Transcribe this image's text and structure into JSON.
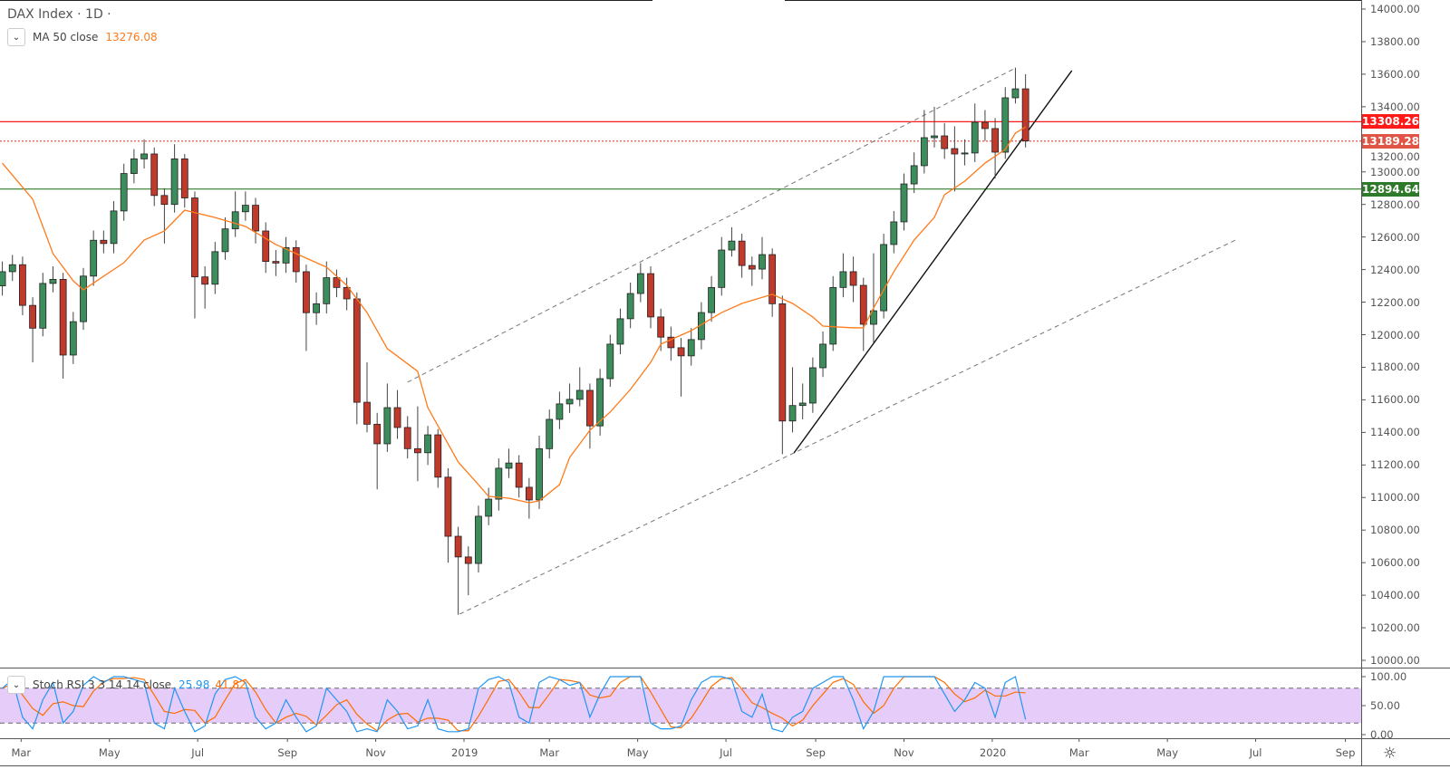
{
  "header": {
    "symbol_title": "DAX Index · 1D ·"
  },
  "ma_legend": {
    "label": "MA 50 close",
    "value": "13276.08",
    "color": "#ff7a1a"
  },
  "stoch_legend": {
    "label": "Stoch RSI 3 3 14 14 close",
    "k_value": "25.98",
    "d_value": "41.82",
    "k_color": "#2196f3",
    "d_color": "#ff6d00"
  },
  "colors": {
    "up": "#3d8c5c",
    "down": "#c0392b",
    "band_fill": "#e6ccf8"
  },
  "chart_data": [
    {
      "type": "candlestick",
      "title": "DAX Index · 1D",
      "y_axis": {
        "range": [
          10000,
          14000
        ],
        "ticks": [
          "14000.00",
          "13800.00",
          "13600.00",
          "13400.00",
          "13200.00",
          "13000.00",
          "12800.00",
          "12600.00",
          "12400.00",
          "12200.00",
          "12000.00",
          "11800.00",
          "11600.00",
          "11400.00",
          "11200.00",
          "11000.00",
          "10800.00",
          "10600.00",
          "10400.00",
          "10200.00",
          "10000.00"
        ]
      },
      "x_axis": {
        "ticks": [
          {
            "label": "Mar",
            "date": "2018-03-01"
          },
          {
            "label": "May",
            "date": "2018-05-01"
          },
          {
            "label": "Jul",
            "date": "2018-07-01"
          },
          {
            "label": "Sep",
            "date": "2018-09-01"
          },
          {
            "label": "Nov",
            "date": "2018-11-01"
          },
          {
            "label": "2019",
            "date": "2019-01-01"
          },
          {
            "label": "Mar",
            "date": "2019-03-01"
          },
          {
            "label": "May",
            "date": "2019-05-01"
          },
          {
            "label": "Jul",
            "date": "2019-07-01"
          },
          {
            "label": "Sep",
            "date": "2019-09-01"
          },
          {
            "label": "Nov",
            "date": "2019-11-01"
          },
          {
            "label": "2020",
            "date": "2020-01-01"
          },
          {
            "label": "Mar",
            "date": "2020-03-01"
          },
          {
            "label": "May",
            "date": "2020-05-01"
          },
          {
            "label": "Jul",
            "date": "2020-07-01"
          },
          {
            "label": "Sep",
            "date": "2020-09-01"
          }
        ]
      },
      "candles": [
        [
          "2018-02-16",
          12300,
          12450,
          12240,
          12387
        ],
        [
          "2018-02-23",
          12387,
          12490,
          12330,
          12430
        ],
        [
          "2018-03-02",
          12430,
          12480,
          12120,
          12180
        ],
        [
          "2018-03-09",
          12180,
          12230,
          11830,
          12040
        ],
        [
          "2018-03-16",
          12040,
          12380,
          11990,
          12315
        ],
        [
          "2018-03-23",
          12315,
          12420,
          12260,
          12340
        ],
        [
          "2018-03-30",
          12340,
          12380,
          11730,
          11875
        ],
        [
          "2018-04-06",
          11875,
          12140,
          11820,
          12080
        ],
        [
          "2018-04-13",
          12080,
          12410,
          12030,
          12360
        ],
        [
          "2018-04-20",
          12360,
          12640,
          12300,
          12580
        ],
        [
          "2018-04-27",
          12580,
          12640,
          12500,
          12560
        ],
        [
          "2018-05-04",
          12560,
          12820,
          12500,
          12760
        ],
        [
          "2018-05-11",
          12760,
          13050,
          12700,
          12990
        ],
        [
          "2018-05-18",
          12990,
          13140,
          12930,
          13080
        ],
        [
          "2018-05-25",
          13080,
          13200,
          13020,
          13110
        ],
        [
          "2018-06-01",
          13110,
          13150,
          12790,
          12855
        ],
        [
          "2018-06-08",
          12855,
          12900,
          12560,
          12800
        ],
        [
          "2018-06-15",
          12800,
          13170,
          12750,
          13080
        ],
        [
          "2018-06-22",
          13080,
          13110,
          12780,
          12840
        ],
        [
          "2018-06-29",
          12840,
          12880,
          12100,
          12355
        ],
        [
          "2018-07-06",
          12355,
          12420,
          12160,
          12310
        ],
        [
          "2018-07-13",
          12310,
          12570,
          12250,
          12510
        ],
        [
          "2018-07-20",
          12510,
          12720,
          12460,
          12650
        ],
        [
          "2018-07-27",
          12650,
          12880,
          12600,
          12755
        ],
        [
          "2018-08-03",
          12755,
          12880,
          12700,
          12795
        ],
        [
          "2018-08-10",
          12795,
          12840,
          12560,
          12637
        ],
        [
          "2018-08-17",
          12637,
          12690,
          12380,
          12450
        ],
        [
          "2018-08-24",
          12450,
          12520,
          12360,
          12440
        ],
        [
          "2018-08-31",
          12440,
          12600,
          12380,
          12535
        ],
        [
          "2018-09-07",
          12535,
          12580,
          12320,
          12387
        ],
        [
          "2018-09-14",
          12387,
          12430,
          11900,
          12135
        ],
        [
          "2018-09-21",
          12135,
          12260,
          12060,
          12190
        ],
        [
          "2018-09-28",
          12190,
          12450,
          12130,
          12350
        ],
        [
          "2018-10-05",
          12350,
          12400,
          12230,
          12290
        ],
        [
          "2018-10-12",
          12290,
          12350,
          12150,
          12220
        ],
        [
          "2018-10-19",
          12220,
          12260,
          11450,
          11585
        ],
        [
          "2018-10-26",
          11585,
          11830,
          11400,
          11450
        ],
        [
          "2018-11-02",
          11450,
          11520,
          11050,
          11330
        ],
        [
          "2018-11-09",
          11330,
          11700,
          11280,
          11552
        ],
        [
          "2018-11-16",
          11552,
          11660,
          11360,
          11430
        ],
        [
          "2018-11-23",
          11430,
          11500,
          11240,
          11300
        ],
        [
          "2018-11-30",
          11300,
          11560,
          11100,
          11275
        ],
        [
          "2018-12-07",
          11275,
          11440,
          11200,
          11385
        ],
        [
          "2018-12-14",
          11385,
          11420,
          11060,
          11125
        ],
        [
          "2018-12-21",
          11125,
          11180,
          10600,
          10762
        ],
        [
          "2018-12-28",
          10762,
          10820,
          10280,
          10635
        ],
        [
          "2019-01-04",
          10635,
          10700,
          10400,
          10595
        ],
        [
          "2019-01-11",
          10595,
          10950,
          10540,
          10885
        ],
        [
          "2019-01-18",
          10885,
          11060,
          10830,
          10990
        ],
        [
          "2019-01-25",
          10990,
          11240,
          10920,
          11180
        ],
        [
          "2019-02-01",
          11180,
          11300,
          11120,
          11212
        ],
        [
          "2019-02-08",
          11212,
          11260,
          11000,
          11063
        ],
        [
          "2019-02-15",
          11063,
          11120,
          10870,
          10985
        ],
        [
          "2019-02-22",
          10985,
          11380,
          10930,
          11300
        ],
        [
          "2019-03-01",
          11300,
          11540,
          11240,
          11480
        ],
        [
          "2019-03-08",
          11480,
          11650,
          11420,
          11575
        ],
        [
          "2019-03-15",
          11575,
          11700,
          11520,
          11603
        ],
        [
          "2019-03-22",
          11603,
          11800,
          11560,
          11658
        ],
        [
          "2019-03-29",
          11658,
          11700,
          11300,
          11440
        ],
        [
          "2019-04-05",
          11440,
          11790,
          11380,
          11730
        ],
        [
          "2019-04-12",
          11730,
          12000,
          11680,
          11942
        ],
        [
          "2019-04-19",
          11942,
          12160,
          11880,
          12098
        ],
        [
          "2019-04-26",
          12098,
          12320,
          12040,
          12253
        ],
        [
          "2019-05-03",
          12253,
          12440,
          12200,
          12375
        ],
        [
          "2019-05-10",
          12375,
          12420,
          12040,
          12109
        ],
        [
          "2019-05-17",
          12109,
          12160,
          11900,
          11985
        ],
        [
          "2019-05-24",
          11985,
          12050,
          11840,
          11920
        ],
        [
          "2019-05-31",
          11920,
          11980,
          11620,
          11870
        ],
        [
          "2019-06-07",
          11870,
          12040,
          11810,
          11970
        ],
        [
          "2019-06-14",
          11970,
          12200,
          11910,
          12136
        ],
        [
          "2019-06-21",
          12136,
          12360,
          12080,
          12290
        ],
        [
          "2019-06-28",
          12290,
          12600,
          12240,
          12520
        ],
        [
          "2019-07-05",
          12520,
          12660,
          12480,
          12575
        ],
        [
          "2019-07-12",
          12575,
          12620,
          12350,
          12425
        ],
        [
          "2019-07-19",
          12425,
          12480,
          12300,
          12403
        ],
        [
          "2019-07-26",
          12403,
          12600,
          12340,
          12492
        ],
        [
          "2019-08-02",
          12492,
          12530,
          12110,
          12190
        ],
        [
          "2019-08-09",
          12190,
          12240,
          11266,
          11470
        ],
        [
          "2019-08-16",
          11470,
          11800,
          11400,
          11565
        ],
        [
          "2019-08-23",
          11565,
          11700,
          11480,
          11580
        ],
        [
          "2019-08-30",
          11580,
          11860,
          11520,
          11797
        ],
        [
          "2019-09-06",
          11797,
          12020,
          11740,
          11942
        ],
        [
          "2019-09-13",
          11942,
          12360,
          11900,
          12290
        ],
        [
          "2019-09-20",
          12290,
          12500,
          12230,
          12387
        ],
        [
          "2019-09-27",
          12387,
          12480,
          12200,
          12303
        ],
        [
          "2019-10-04",
          12303,
          12350,
          11900,
          12064
        ],
        [
          "2019-10-11",
          12064,
          12500,
          11950,
          12147
        ],
        [
          "2019-10-18",
          12147,
          12620,
          12100,
          12554
        ],
        [
          "2019-10-25",
          12554,
          12760,
          12500,
          12693
        ],
        [
          "2019-11-01",
          12693,
          12990,
          12640,
          12926
        ],
        [
          "2019-11-08",
          12926,
          13120,
          12870,
          13038
        ],
        [
          "2019-11-15",
          13038,
          13380,
          12990,
          13210
        ],
        [
          "2019-11-22",
          13210,
          13400,
          13150,
          13221
        ],
        [
          "2019-11-29",
          13221,
          13300,
          13080,
          13143
        ],
        [
          "2019-12-06",
          13143,
          13280,
          12880,
          13110
        ],
        [
          "2019-12-13",
          13110,
          13200,
          13040,
          13116
        ],
        [
          "2019-12-20",
          13116,
          13420,
          13060,
          13305
        ],
        [
          "2019-12-27",
          13305,
          13380,
          13190,
          13266
        ],
        [
          "2020-01-03",
          13266,
          13330,
          12960,
          13121
        ],
        [
          "2020-01-10",
          13121,
          13520,
          13080,
          13455
        ],
        [
          "2020-01-17",
          13455,
          13640,
          13420,
          13510
        ],
        [
          "2020-01-24",
          13510,
          13600,
          13150,
          13190
        ]
      ],
      "ma50": [
        [
          "2018-02-16",
          13054
        ],
        [
          "2018-03-09",
          12832
        ],
        [
          "2018-03-23",
          12498
        ],
        [
          "2018-04-06",
          12331
        ],
        [
          "2018-04-13",
          12275
        ],
        [
          "2018-04-27",
          12359
        ],
        [
          "2018-05-11",
          12442
        ],
        [
          "2018-05-25",
          12581
        ],
        [
          "2018-06-08",
          12637
        ],
        [
          "2018-06-22",
          12765
        ],
        [
          "2018-07-13",
          12720
        ],
        [
          "2018-08-03",
          12665
        ],
        [
          "2018-08-24",
          12554
        ],
        [
          "2018-09-14",
          12470
        ],
        [
          "2018-09-28",
          12415
        ],
        [
          "2018-10-12",
          12303
        ],
        [
          "2018-10-26",
          12136
        ],
        [
          "2018-11-09",
          11914
        ],
        [
          "2018-11-30",
          11775
        ],
        [
          "2018-12-07",
          11552
        ],
        [
          "2018-12-28",
          11218
        ],
        [
          "2019-01-11",
          11079
        ],
        [
          "2019-01-18",
          11007
        ],
        [
          "2019-02-01",
          10996
        ],
        [
          "2019-02-15",
          10968
        ],
        [
          "2019-02-22",
          10979
        ],
        [
          "2019-03-08",
          11079
        ],
        [
          "2019-03-15",
          11246
        ],
        [
          "2019-03-29",
          11413
        ],
        [
          "2019-04-12",
          11525
        ],
        [
          "2019-04-26",
          11664
        ],
        [
          "2019-05-10",
          11830
        ],
        [
          "2019-05-17",
          11942
        ],
        [
          "2019-06-07",
          12025
        ],
        [
          "2019-06-28",
          12136
        ],
        [
          "2019-07-12",
          12192
        ],
        [
          "2019-08-02",
          12248
        ],
        [
          "2019-08-16",
          12192
        ],
        [
          "2019-08-30",
          12109
        ],
        [
          "2019-09-06",
          12053
        ],
        [
          "2019-09-27",
          12042
        ],
        [
          "2019-10-04",
          12042
        ],
        [
          "2019-10-11",
          12164
        ],
        [
          "2019-10-25",
          12387
        ],
        [
          "2019-11-08",
          12581
        ],
        [
          "2019-11-22",
          12721
        ],
        [
          "2019-11-29",
          12860
        ],
        [
          "2019-12-13",
          12943
        ],
        [
          "2019-12-27",
          13054
        ],
        [
          "2020-01-10",
          13138
        ],
        [
          "2020-01-17",
          13238
        ],
        [
          "2020-01-24",
          13276.08
        ]
      ],
      "horizontal_lines": [
        {
          "value": 13308.26,
          "label": "13308.26",
          "color": "#ff1a1a",
          "style": "solid"
        },
        {
          "value": 13189.28,
          "label": "13189.28",
          "color": "#e05545",
          "style": "dotted"
        },
        {
          "value": 12894.64,
          "label": "12894.64",
          "color": "#2f7a2a",
          "style": "solid"
        }
      ],
      "trend_lines": [
        {
          "from": [
            "2018-11-23",
            11708
          ],
          "to": [
            "2020-01-17",
            13638
          ],
          "style": "dashed",
          "color": "#777"
        },
        {
          "from": [
            "2018-12-29",
            10284
          ],
          "to": [
            "2020-06-17",
            12581
          ],
          "style": "dashed",
          "color": "#777"
        },
        {
          "from": [
            "2019-08-17",
            11274
          ],
          "to": [
            "2020-02-25",
            13622
          ],
          "style": "solid",
          "color": "#111"
        }
      ]
    },
    {
      "type": "line",
      "title": "Stoch RSI 3 3 14 14 close",
      "y_axis": {
        "range": [
          0,
          100
        ],
        "ticks": [
          "100.00",
          "50.00",
          "0.00"
        ],
        "bands": [
          20,
          80
        ]
      },
      "k": [
        80,
        95,
        30,
        10,
        60,
        90,
        20,
        40,
        85,
        100,
        90,
        100,
        100,
        95,
        90,
        20,
        10,
        80,
        40,
        5,
        15,
        70,
        95,
        100,
        90,
        30,
        10,
        20,
        60,
        30,
        5,
        15,
        80,
        60,
        40,
        5,
        10,
        5,
        60,
        40,
        10,
        15,
        60,
        10,
        5,
        5,
        10,
        80,
        95,
        100,
        90,
        30,
        20,
        90,
        100,
        95,
        85,
        90,
        30,
        70,
        100,
        100,
        100,
        100,
        20,
        10,
        10,
        15,
        60,
        90,
        100,
        100,
        95,
        40,
        30,
        70,
        10,
        5,
        30,
        40,
        80,
        90,
        100,
        100,
        60,
        10,
        40,
        100,
        100,
        100,
        100,
        100,
        100,
        70,
        40,
        60,
        90,
        80,
        30,
        90,
        100,
        25.98
      ]
    }
  ]
}
